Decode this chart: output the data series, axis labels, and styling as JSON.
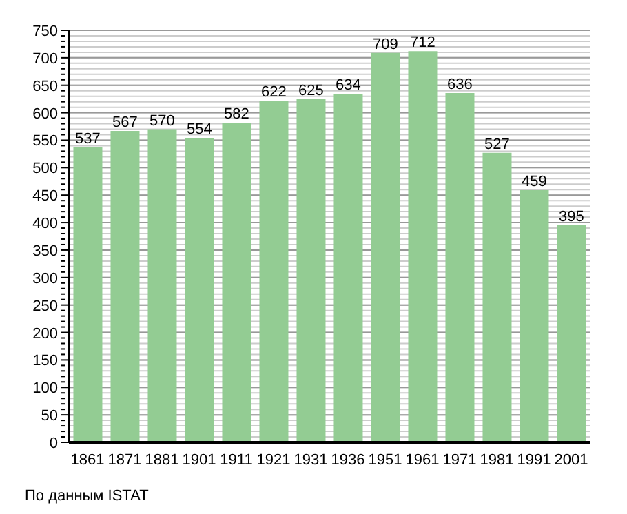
{
  "chart_data": {
    "type": "bar",
    "categories": [
      "1861",
      "1871",
      "1881",
      "1901",
      "1911",
      "1921",
      "1931",
      "1936",
      "1951",
      "1961",
      "1971",
      "1981",
      "1991",
      "2001"
    ],
    "values": [
      537,
      567,
      570,
      554,
      582,
      622,
      625,
      634,
      709,
      712,
      636,
      527,
      459,
      395
    ],
    "color": "#93cc93",
    "data_labels": true,
    "ylim": [
      0,
      750
    ],
    "yticks": [
      0,
      {
        "value": 10,
        "label": null
      },
      {
        "value": 20,
        "label": null
      },
      {
        "value": 30,
        "label": null
      },
      {
        "value": 40,
        "label": null
      },
      50,
      {
        "value": 60,
        "label": null
      },
      {
        "value": 70,
        "label": null
      },
      {
        "value": 80,
        "label": null
      },
      {
        "value": 90,
        "label": null
      },
      100,
      {
        "value": 110,
        "label": null
      },
      {
        "value": 120,
        "label": null
      },
      {
        "value": 130,
        "label": null
      },
      {
        "value": 140,
        "label": null
      },
      150,
      {
        "value": 160,
        "label": null
      },
      {
        "value": 170,
        "label": null
      },
      {
        "value": 180,
        "label": null
      },
      {
        "value": 190,
        "label": null
      },
      200,
      {
        "value": 210,
        "label": null
      },
      {
        "value": 220,
        "label": null
      },
      {
        "value": 230,
        "label": null
      },
      {
        "value": 240,
        "label": null
      },
      250,
      {
        "value": 260,
        "label": null
      },
      {
        "value": 270,
        "label": null
      },
      {
        "value": 280,
        "label": null
      },
      {
        "value": 290,
        "label": null
      },
      300,
      {
        "value": 310,
        "label": null
      },
      {
        "value": 320,
        "label": null
      },
      {
        "value": 330,
        "label": null
      },
      {
        "value": 340,
        "label": null
      },
      350,
      {
        "value": 360,
        "label": null
      },
      {
        "value": 370,
        "label": null
      },
      {
        "value": 380,
        "label": null
      },
      {
        "value": 390,
        "label": null
      },
      400,
      {
        "value": 410,
        "label": null
      },
      {
        "value": 420,
        "label": null
      },
      {
        "value": 430,
        "label": null
      },
      {
        "value": 440,
        "label": null
      },
      450,
      {
        "value": 460,
        "label": null
      },
      {
        "value": 470,
        "label": null
      },
      {
        "value": 480,
        "label": null
      },
      {
        "value": 490,
        "label": null
      },
      500,
      {
        "value": 510,
        "label": null
      },
      {
        "value": 520,
        "label": null
      },
      {
        "value": 530,
        "label": null
      },
      {
        "value": 540,
        "label": null
      },
      550,
      {
        "value": 560,
        "label": null
      },
      {
        "value": 570,
        "label": null
      },
      {
        "value": 580,
        "label": null
      },
      {
        "value": 590,
        "label": null
      },
      600,
      {
        "value": 610,
        "label": null
      },
      {
        "value": 620,
        "label": null
      },
      {
        "value": 630,
        "label": null
      },
      {
        "value": 640,
        "label": null
      },
      650,
      {
        "value": 660,
        "label": null
      },
      {
        "value": 670,
        "label": null
      },
      {
        "value": 680,
        "label": null
      },
      {
        "value": 690,
        "label": null
      },
      700,
      {
        "value": 710,
        "label": null
      },
      {
        "value": 720,
        "label": null
      },
      {
        "value": 730,
        "label": null
      },
      {
        "value": 740,
        "label": null
      },
      750
    ],
    "grid": "y",
    "annotations": [
      "По данным ISTAT"
    ]
  }
}
